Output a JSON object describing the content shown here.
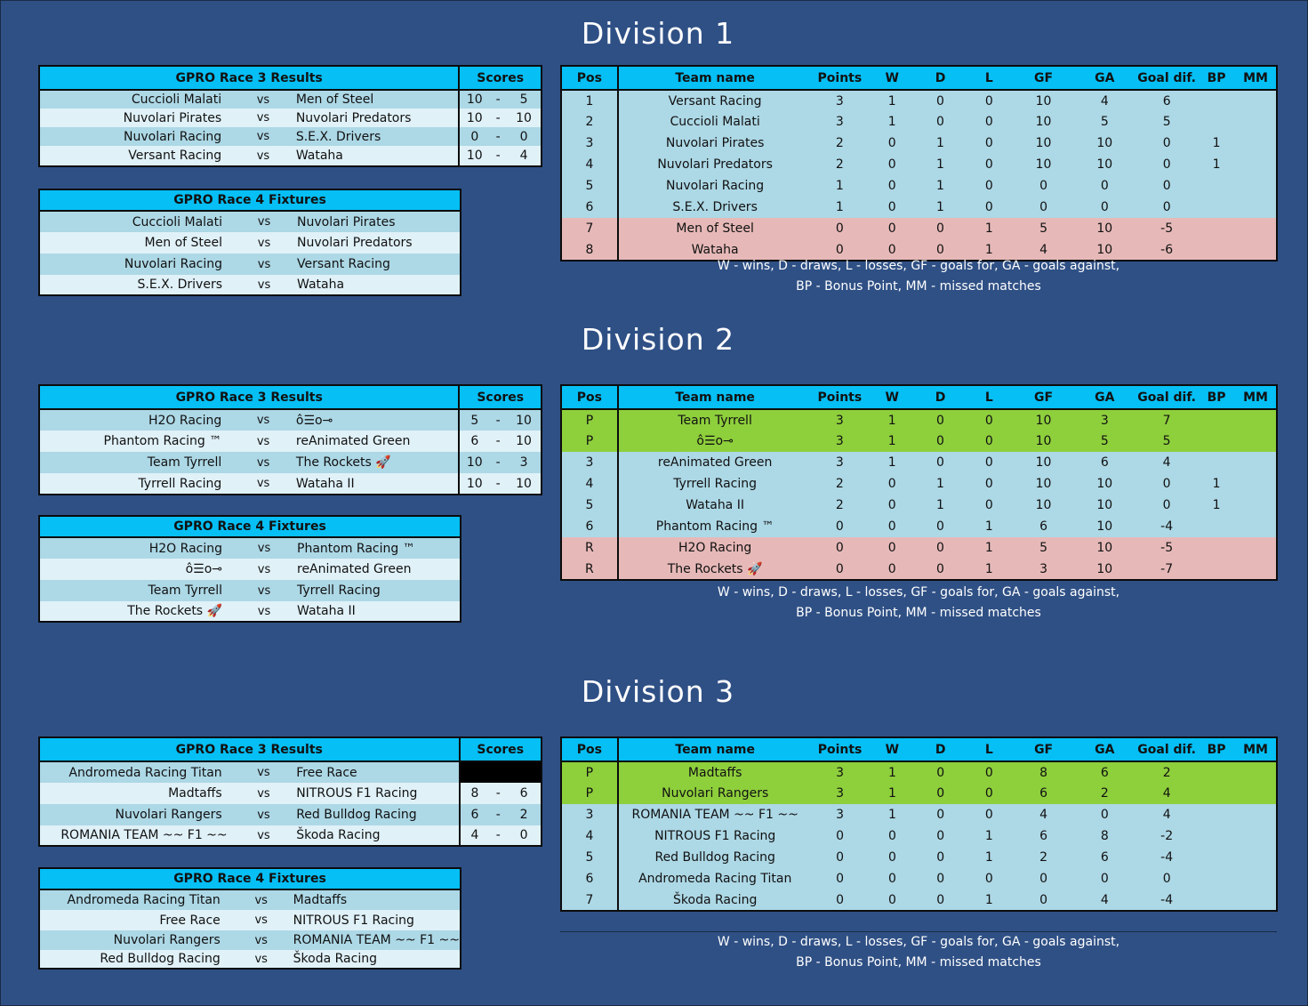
{
  "headers": {
    "results": "GPRO Race 3  Results",
    "scores": "Scores",
    "fixtures": "GPRO Race 4  Fixtures",
    "vs": "vs",
    "dash": "-",
    "standings": [
      "Pos",
      "Team name",
      "Points",
      "W",
      "D",
      "L",
      "GF",
      "GA",
      "Goal dif.",
      "BP",
      "MM"
    ]
  },
  "legend": {
    "line1": "W - wins,     D - draws,     L - losses,     GF - goals for,     GA - goals against,",
    "line2": "BP - Bonus Point,     MM - missed matches"
  },
  "divisions": [
    {
      "title": "Division 1",
      "results": [
        {
          "home": "Cuccioli Malati",
          "away": "Men of Steel",
          "s1": "10",
          "s2": "5"
        },
        {
          "home": "Nuvolari Pirates",
          "away": "Nuvolari Predators",
          "s1": "10",
          "s2": "10"
        },
        {
          "home": "Nuvolari Racing",
          "away": "S.E.X. Drivers",
          "s1": "0",
          "s2": "0"
        },
        {
          "home": "Versant Racing",
          "away": "Wataha",
          "s1": "10",
          "s2": "4"
        }
      ],
      "fixtures": [
        {
          "home": "Cuccioli Malati",
          "away": "Nuvolari Pirates"
        },
        {
          "home": "Men of Steel",
          "away": "Nuvolari Predators"
        },
        {
          "home": "Nuvolari Racing",
          "away": "Versant Racing"
        },
        {
          "home": "S.E.X. Drivers",
          "away": "Wataha"
        }
      ],
      "standings": [
        {
          "pos": "1",
          "team": "Versant Racing",
          "pts": "3",
          "w": "1",
          "d": "0",
          "l": "0",
          "gf": "10",
          "ga": "4",
          "gd": "6",
          "bp": "",
          "mm": "",
          "zone": "normal"
        },
        {
          "pos": "2",
          "team": "Cuccioli Malati",
          "pts": "3",
          "w": "1",
          "d": "0",
          "l": "0",
          "gf": "10",
          "ga": "5",
          "gd": "5",
          "bp": "",
          "mm": "",
          "zone": "normal"
        },
        {
          "pos": "3",
          "team": "Nuvolari Pirates",
          "pts": "2",
          "w": "0",
          "d": "1",
          "l": "0",
          "gf": "10",
          "ga": "10",
          "gd": "0",
          "bp": "1",
          "mm": "",
          "zone": "normal"
        },
        {
          "pos": "4",
          "team": "Nuvolari Predators",
          "pts": "2",
          "w": "0",
          "d": "1",
          "l": "0",
          "gf": "10",
          "ga": "10",
          "gd": "0",
          "bp": "1",
          "mm": "",
          "zone": "normal"
        },
        {
          "pos": "5",
          "team": "Nuvolari Racing",
          "pts": "1",
          "w": "0",
          "d": "1",
          "l": "0",
          "gf": "0",
          "ga": "0",
          "gd": "0",
          "bp": "",
          "mm": "",
          "zone": "normal"
        },
        {
          "pos": "6",
          "team": "S.E.X. Drivers",
          "pts": "1",
          "w": "0",
          "d": "1",
          "l": "0",
          "gf": "0",
          "ga": "0",
          "gd": "0",
          "bp": "",
          "mm": "",
          "zone": "normal"
        },
        {
          "pos": "7",
          "team": "Men of Steel",
          "pts": "0",
          "w": "0",
          "d": "0",
          "l": "1",
          "gf": "5",
          "ga": "10",
          "gd": "-5",
          "bp": "",
          "mm": "",
          "zone": "releg"
        },
        {
          "pos": "8",
          "team": "Wataha",
          "pts": "0",
          "w": "0",
          "d": "0",
          "l": "1",
          "gf": "4",
          "ga": "10",
          "gd": "-6",
          "bp": "",
          "mm": "",
          "zone": "releg"
        }
      ]
    },
    {
      "title": "Division 2",
      "results": [
        {
          "home": "H2O Racing",
          "away": "ô☰o⊸",
          "s1": "5",
          "s2": "10"
        },
        {
          "home": "Phantom Racing ™",
          "away": "reAnimated Green",
          "s1": "6",
          "s2": "10"
        },
        {
          "home": "Team Tyrrell",
          "away": "The Rockets 🚀",
          "s1": "10",
          "s2": "3"
        },
        {
          "home": "Tyrrell Racing",
          "away": "Wataha II",
          "s1": "10",
          "s2": "10"
        }
      ],
      "fixtures": [
        {
          "home": "H2O Racing",
          "away": "Phantom Racing ™"
        },
        {
          "home": "ô☰o⊸",
          "away": "reAnimated Green"
        },
        {
          "home": "Team Tyrrell",
          "away": "Tyrrell Racing"
        },
        {
          "home": "The Rockets 🚀",
          "away": "Wataha II"
        }
      ],
      "standings": [
        {
          "pos": "P",
          "team": "Team Tyrrell",
          "pts": "3",
          "w": "1",
          "d": "0",
          "l": "0",
          "gf": "10",
          "ga": "3",
          "gd": "7",
          "bp": "",
          "mm": "",
          "zone": "promo"
        },
        {
          "pos": "P",
          "team": "ô☰o⊸",
          "pts": "3",
          "w": "1",
          "d": "0",
          "l": "0",
          "gf": "10",
          "ga": "5",
          "gd": "5",
          "bp": "",
          "mm": "",
          "zone": "promo"
        },
        {
          "pos": "3",
          "team": "reAnimated Green",
          "pts": "3",
          "w": "1",
          "d": "0",
          "l": "0",
          "gf": "10",
          "ga": "6",
          "gd": "4",
          "bp": "",
          "mm": "",
          "zone": "normal"
        },
        {
          "pos": "4",
          "team": "Tyrrell Racing",
          "pts": "2",
          "w": "0",
          "d": "1",
          "l": "0",
          "gf": "10",
          "ga": "10",
          "gd": "0",
          "bp": "1",
          "mm": "",
          "zone": "normal"
        },
        {
          "pos": "5",
          "team": "Wataha II",
          "pts": "2",
          "w": "0",
          "d": "1",
          "l": "0",
          "gf": "10",
          "ga": "10",
          "gd": "0",
          "bp": "1",
          "mm": "",
          "zone": "normal"
        },
        {
          "pos": "6",
          "team": "Phantom Racing ™",
          "pts": "0",
          "w": "0",
          "d": "0",
          "l": "1",
          "gf": "6",
          "ga": "10",
          "gd": "-4",
          "bp": "",
          "mm": "",
          "zone": "normal"
        },
        {
          "pos": "R",
          "team": "H2O Racing",
          "pts": "0",
          "w": "0",
          "d": "0",
          "l": "1",
          "gf": "5",
          "ga": "10",
          "gd": "-5",
          "bp": "",
          "mm": "",
          "zone": "releg"
        },
        {
          "pos": "R",
          "team": "The Rockets 🚀",
          "pts": "0",
          "w": "0",
          "d": "0",
          "l": "1",
          "gf": "3",
          "ga": "10",
          "gd": "-7",
          "bp": "",
          "mm": "",
          "zone": "releg"
        }
      ]
    },
    {
      "title": "Division 3",
      "results": [
        {
          "home": "Andromeda Racing Titan",
          "away": "Free Race",
          "s1": "",
          "s2": "",
          "blank": true
        },
        {
          "home": "Madtaffs",
          "away": "NITROUS F1 Racing",
          "s1": "8",
          "s2": "6"
        },
        {
          "home": "Nuvolari Rangers",
          "away": "Red Bulldog Racing",
          "s1": "6",
          "s2": "2"
        },
        {
          "home": "ROMANIA TEAM ~~ F1 ~~",
          "away": "Škoda Racing",
          "s1": "4",
          "s2": "0"
        }
      ],
      "fixtures": [
        {
          "home": "Andromeda Racing Titan",
          "away": "Madtaffs"
        },
        {
          "home": "Free Race",
          "away": "NITROUS F1 Racing"
        },
        {
          "home": "Nuvolari Rangers",
          "away": "ROMANIA TEAM ~~ F1 ~~"
        },
        {
          "home": "Red Bulldog Racing",
          "away": "Škoda Racing"
        }
      ],
      "standings": [
        {
          "pos": "P",
          "team": "Madtaffs",
          "pts": "3",
          "w": "1",
          "d": "0",
          "l": "0",
          "gf": "8",
          "ga": "6",
          "gd": "2",
          "bp": "",
          "mm": "",
          "zone": "promo"
        },
        {
          "pos": "P",
          "team": "Nuvolari Rangers",
          "pts": "3",
          "w": "1",
          "d": "0",
          "l": "0",
          "gf": "6",
          "ga": "2",
          "gd": "4",
          "bp": "",
          "mm": "",
          "zone": "promo"
        },
        {
          "pos": "3",
          "team": "ROMANIA TEAM ~~ F1 ~~",
          "pts": "3",
          "w": "1",
          "d": "0",
          "l": "0",
          "gf": "4",
          "ga": "0",
          "gd": "4",
          "bp": "",
          "mm": "",
          "zone": "normal"
        },
        {
          "pos": "4",
          "team": "NITROUS F1 Racing",
          "pts": "0",
          "w": "0",
          "d": "0",
          "l": "1",
          "gf": "6",
          "ga": "8",
          "gd": "-2",
          "bp": "",
          "mm": "",
          "zone": "normal"
        },
        {
          "pos": "5",
          "team": "Red Bulldog Racing",
          "pts": "0",
          "w": "0",
          "d": "0",
          "l": "1",
          "gf": "2",
          "ga": "6",
          "gd": "-4",
          "bp": "",
          "mm": "",
          "zone": "normal"
        },
        {
          "pos": "6",
          "team": "Andromeda Racing Titan",
          "pts": "0",
          "w": "0",
          "d": "0",
          "l": "0",
          "gf": "0",
          "ga": "0",
          "gd": "0",
          "bp": "",
          "mm": "",
          "zone": "normal"
        },
        {
          "pos": "7",
          "team": "Škoda Racing",
          "pts": "0",
          "w": "0",
          "d": "0",
          "l": "1",
          "gf": "0",
          "ga": "4",
          "gd": "-4",
          "bp": "",
          "mm": "",
          "zone": "normal"
        }
      ]
    }
  ]
}
